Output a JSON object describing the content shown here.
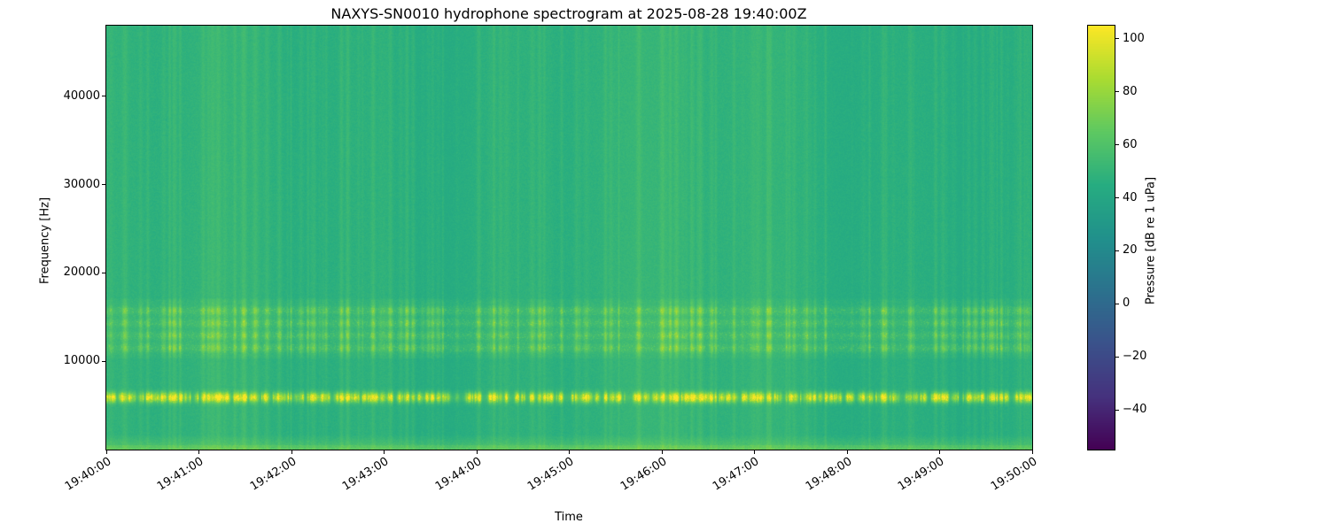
{
  "figure": {
    "background": "#ffffff",
    "text_color": "#000000"
  },
  "chart_data": {
    "type": "heatmap",
    "subtype": "spectrogram",
    "title": "NAXYS-SN0010 hydrophone spectrogram at 2025-08-28 19:40:00Z",
    "xlabel": "Time",
    "ylabel": "Frequency [Hz]",
    "x_ticks": [
      "19:40:00",
      "19:41:00",
      "19:42:00",
      "19:43:00",
      "19:44:00",
      "19:45:00",
      "19:46:00",
      "19:47:00",
      "19:48:00",
      "19:49:00",
      "19:50:00"
    ],
    "x_tick_rotation_deg": 32,
    "y_ticks": [
      10000,
      20000,
      30000,
      40000
    ],
    "ylim": [
      0,
      48000
    ],
    "grid": false,
    "colormap": "viridis",
    "colorbar": {
      "label": "Pressure [dB re 1 uPa]",
      "ticks": [
        100,
        80,
        60,
        40,
        20,
        0,
        -20,
        -40
      ],
      "vmin": -55,
      "vmax": 105,
      "position": "right"
    },
    "content": {
      "background_level_db": 47,
      "features": [
        {
          "name": "narrowband-tonal-burst-band",
          "freq_range_hz": [
            5000,
            6800
          ],
          "level_db_range": [
            60,
            100
          ],
          "pattern": "intermittent bright yellow dashes across the entire 10-minute duration"
        },
        {
          "name": "mid-frequency-noise-band",
          "freq_range_hz": [
            10500,
            16500
          ],
          "level_db_range": [
            52,
            75
          ],
          "pattern": "speckled, finely striated band with many vertical streaks"
        },
        {
          "name": "low-frequency-band",
          "freq_range_hz": [
            0,
            1500
          ],
          "level_db_range": [
            55,
            72
          ],
          "pattern": "continuous brighter strip along the bottom edge"
        },
        {
          "name": "broadband-transients",
          "freq_range_hz": [
            0,
            48000
          ],
          "level_db_range": [
            50,
            65
          ],
          "pattern": "numerous faint full-height vertical streaks (impulsive clicks)"
        }
      ]
    }
  }
}
